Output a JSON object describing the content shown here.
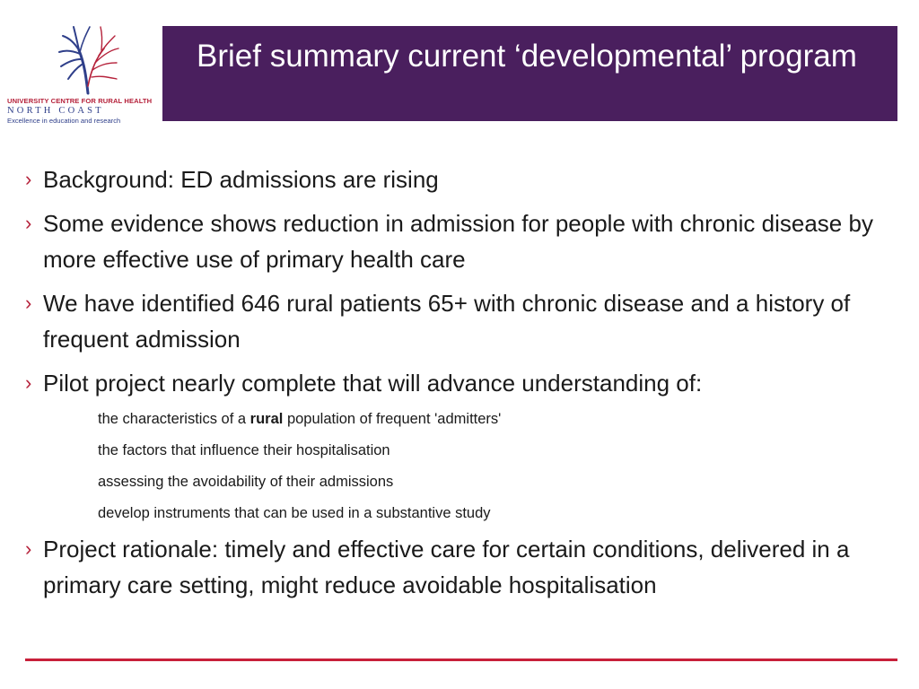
{
  "logo": {
    "line1": "UNIVERSITY CENTRE FOR RURAL HEALTH",
    "line2": "NORTH COAST",
    "line3": "Excellence in education and research",
    "colors": {
      "red": "#b5213a",
      "blue": "#2f3f8a"
    },
    "icon": "tree-logo-icon"
  },
  "title": "Brief summary current ‘developmental’ program",
  "colors": {
    "title_bar": "#4a1f5e",
    "accent": "#b5213a",
    "rule": "#c8203a"
  },
  "bullet_marker": "›",
  "bullets": {
    "b1": "Background: ED admissions are rising",
    "b2": "Some evidence shows reduction in admission for people with chronic disease by more effective use of primary health care",
    "b3": "We have identified 646 rural patients 65+ with chronic disease and a history of frequent admission",
    "b4": "Pilot project nearly complete that will advance understanding of:",
    "b5": "Project rationale: timely and effective care for certain conditions, delivered in a primary care setting, might reduce avoidable hospitalisation"
  },
  "subs": {
    "s1_pre": "the characteristics of a ",
    "s1_bold": "rural",
    "s1_post": " population of frequent 'admitters'",
    "s2": "the factors that influence their hospitalisation",
    "s3": "assessing the avoidability of their admissions",
    "s4": "develop instruments that can be used in a substantive study"
  }
}
